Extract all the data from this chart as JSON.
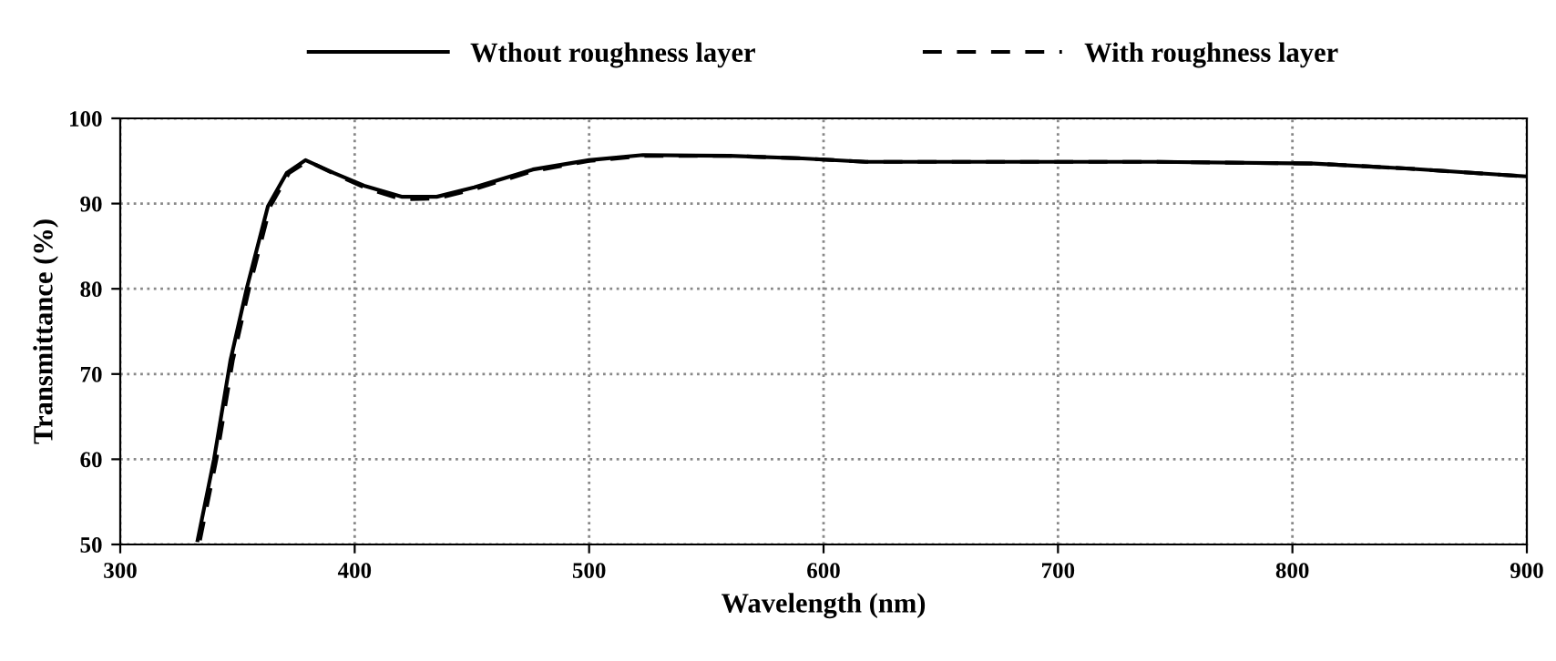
{
  "chart_data": {
    "type": "line",
    "xlabel": "Wavelength (nm)",
    "ylabel": "Transmittance (%)",
    "xlim": [
      300,
      900
    ],
    "ylim": [
      50,
      100
    ],
    "xticks": [
      300,
      400,
      500,
      600,
      700,
      800,
      900
    ],
    "yticks": [
      50,
      60,
      70,
      80,
      90,
      100
    ],
    "grid": true,
    "legend": "top",
    "tick_labels": true,
    "series": [
      {
        "name": "Wthout roughness layer",
        "color": "#000000",
        "line_style": "solid",
        "x": [
          333,
          340,
          347,
          354,
          363,
          371,
          379,
          391,
          404,
          420,
          435,
          451,
          476,
          500,
          523,
          560,
          591,
          618,
          699,
          741,
          809,
          850,
          899
        ],
        "values": [
          50.5,
          60,
          71.6,
          80.1,
          89.7,
          93.6,
          95.1,
          93.6,
          92.1,
          90.8,
          90.8,
          91.9,
          94,
          95.1,
          95.7,
          95.6,
          95.3,
          94.9,
          94.9,
          94.9,
          94.7,
          94.1,
          93.2
        ]
      },
      {
        "name": "With roughness layer",
        "color": "#000000",
        "line_style": "dashed",
        "x": [
          334,
          341,
          348,
          355,
          364,
          372,
          380,
          392,
          405,
          420,
          435,
          451,
          476,
          500,
          523,
          560,
          591,
          618,
          699,
          741,
          809,
          850,
          899
        ],
        "values": [
          50.5,
          60,
          71.6,
          80.1,
          89.7,
          93.6,
          95,
          93.4,
          91.8,
          90.5,
          90.6,
          91.7,
          93.8,
          95,
          95.6,
          95.6,
          95.3,
          94.9,
          94.9,
          94.9,
          94.7,
          94.1,
          93.2
        ]
      }
    ]
  }
}
